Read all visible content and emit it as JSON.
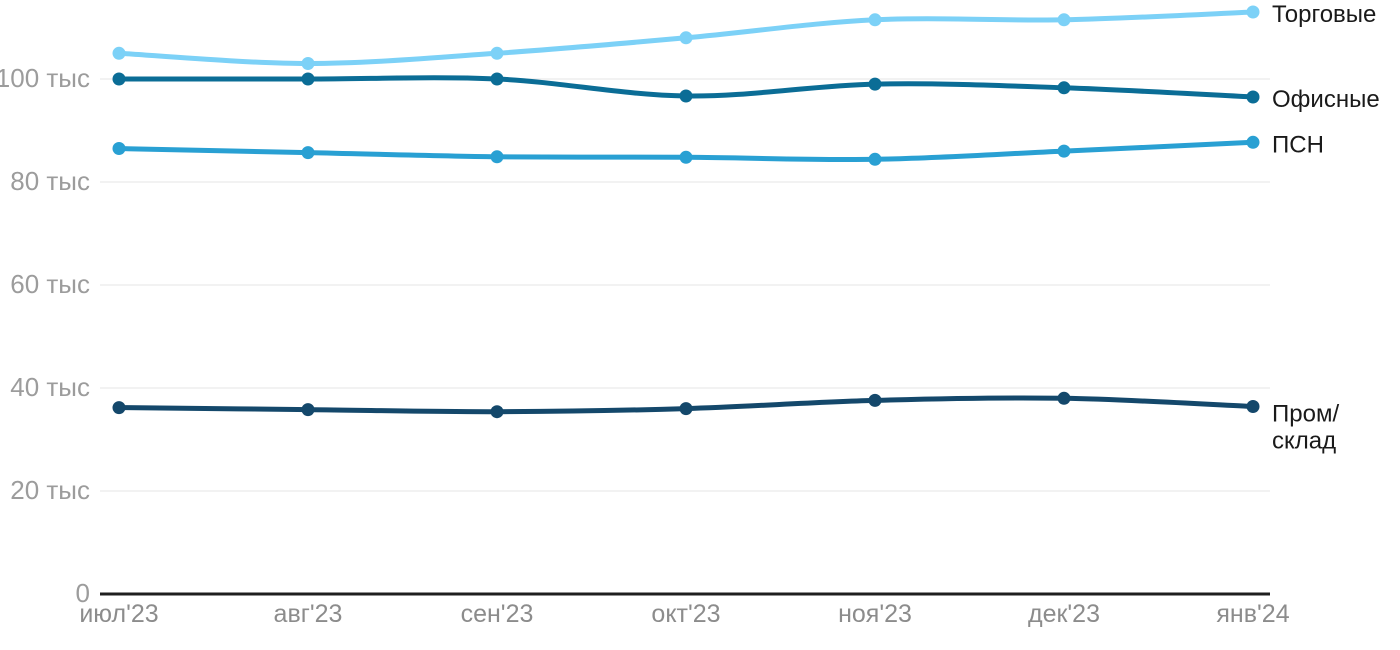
{
  "chart_data": {
    "type": "line",
    "title": "",
    "xlabel": "",
    "ylabel": "",
    "unit": "тыс",
    "x": [
      "июл'23",
      "авг'23",
      "сен'23",
      "окт'23",
      "ноя'23",
      "дек'23",
      "янв'24"
    ],
    "y_ticks": [
      {
        "value": 0,
        "label": "0"
      },
      {
        "value": 20,
        "label": "20 тыс"
      },
      {
        "value": 40,
        "label": "40 тыс"
      },
      {
        "value": 60,
        "label": "60 тыс"
      },
      {
        "value": 80,
        "label": "80 тыс"
      },
      {
        "value": 100,
        "label": "100 тыс"
      }
    ],
    "ylim": [
      0,
      115
    ],
    "grid": "horizontal",
    "legend_position": "right-of-line-end",
    "series": [
      {
        "name": "Торговые",
        "color": "#7CD1F7",
        "values": [
          105,
          103,
          105,
          108,
          111.5,
          111.5,
          113
        ],
        "label_lines": [
          "Торговые"
        ]
      },
      {
        "name": "Офисные",
        "color": "#0B6D96",
        "values": [
          100,
          100,
          100,
          96.7,
          99,
          98.3,
          96.5
        ],
        "label_lines": [
          "Офисные"
        ]
      },
      {
        "name": "ПСН",
        "color": "#29A0D3",
        "values": [
          86.5,
          85.7,
          84.9,
          84.8,
          84.4,
          86,
          87.7
        ],
        "label_lines": [
          "ПСН"
        ]
      },
      {
        "name": "Пром/склад",
        "color": "#14486B",
        "values": [
          36.2,
          35.8,
          35.4,
          36,
          37.6,
          38,
          36.4
        ],
        "label_lines": [
          "Пром/",
          "склад"
        ]
      }
    ],
    "colors": {
      "background": "#FFFFFF",
      "gridline": "#E9E9E9",
      "axis": "#1F1F1F",
      "y_tick_text": "#9C9C9C",
      "x_tick_text": "#8C8C8C",
      "legend_text": "#1A1A1A"
    }
  }
}
